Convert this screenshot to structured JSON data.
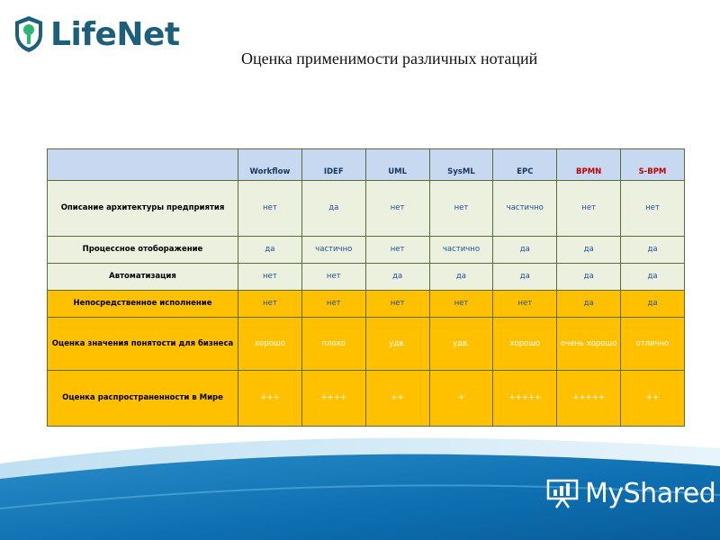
{
  "logo": {
    "text": "LifeNet",
    "color": "#1d5f7a",
    "accent": "#2bb673",
    "icon": "shield-icon"
  },
  "title": "Оценка применимости различных нотаций",
  "table": {
    "columns": [
      "Workflow",
      "IDEF",
      "UML",
      "SysML",
      "EPC",
      "BPMN",
      "S-BPM"
    ],
    "rows": [
      {
        "label": "Описание  архитектуры  предприятия",
        "cells": [
          "нет",
          "да",
          "нет",
          "нет",
          "частично",
          "нет",
          "нет"
        ]
      },
      {
        "label": "Процессное  отоборажение",
        "cells": [
          "да",
          "частично",
          "нет",
          "частично",
          "да",
          "да",
          "да"
        ]
      },
      {
        "label": "Автоматизация",
        "cells": [
          "нет",
          "нет",
          "да",
          "да",
          "да",
          "да",
          "да"
        ]
      },
      {
        "label": "Непосредственное  исполнение",
        "cells": [
          "нет",
          "нет",
          "нет",
          "нет",
          "нет",
          "да",
          "да"
        ]
      },
      {
        "label": "Оценка  значения  понятости  для бизнеса",
        "cells": [
          "хорошо",
          "плохо",
          "удв.",
          "удв.",
          "хорошо",
          "очень хорошо",
          "отлично"
        ]
      },
      {
        "label": "Оценка  распространенности  в Мире",
        "cells": [
          "+++",
          "++++",
          "++",
          "+",
          "+++++",
          "+++++",
          "++"
        ]
      }
    ],
    "colors": {
      "header_bg": "#c6d9f1",
      "green_row": "#ebf1de",
      "gold_row": "#ffc000"
    }
  },
  "brand": {
    "text": "MyShared",
    "icon": "presentation-icon"
  }
}
